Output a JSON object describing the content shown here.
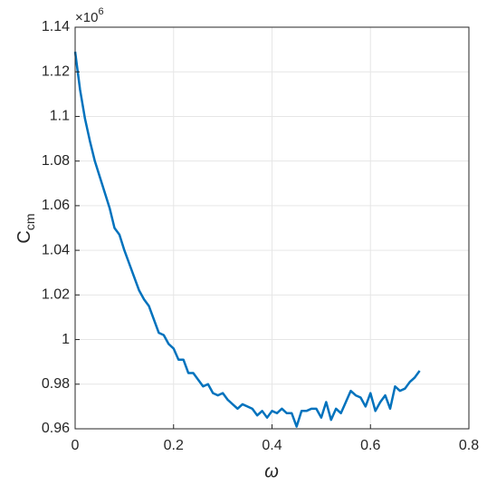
{
  "chart_data": {
    "type": "line",
    "xlabel": "ω",
    "ylabel": {
      "main": "C",
      "sub": "cm"
    },
    "y_multiplier": {
      "base": "×10",
      "exponent": "6"
    },
    "xlim": [
      0,
      0.8
    ],
    "xticks": [
      0,
      0.2,
      0.4,
      0.6,
      0.8
    ],
    "ylim": [
      0.96,
      1.14
    ],
    "yticks": [
      0.96,
      0.98,
      1,
      1.02,
      1.04,
      1.06,
      1.08,
      1.1,
      1.12,
      1.14
    ],
    "grid": true,
    "series": [
      {
        "color": "#0072bd",
        "x": [
          0,
          0.01,
          0.02,
          0.03,
          0.04,
          0.05,
          0.06,
          0.07,
          0.08,
          0.09,
          0.1,
          0.11,
          0.12,
          0.13,
          0.14,
          0.15,
          0.16,
          0.17,
          0.18,
          0.19,
          0.2,
          0.21,
          0.22,
          0.23,
          0.24,
          0.25,
          0.26,
          0.27,
          0.28,
          0.29,
          0.3,
          0.31,
          0.32,
          0.33,
          0.34,
          0.35,
          0.36,
          0.37,
          0.38,
          0.39,
          0.4,
          0.41,
          0.42,
          0.43,
          0.44,
          0.45,
          0.46,
          0.47,
          0.48,
          0.49,
          0.5,
          0.51,
          0.52,
          0.53,
          0.54,
          0.55,
          0.56,
          0.57,
          0.58,
          0.59,
          0.6,
          0.61,
          0.62,
          0.63,
          0.64,
          0.65,
          0.66,
          0.67,
          0.68,
          0.69,
          0.7
        ],
        "values": [
          1.129,
          1.112,
          1.099,
          1.089,
          1.08,
          1.073,
          1.066,
          1.059,
          1.05,
          1.047,
          1.04,
          1.034,
          1.028,
          1.022,
          1.018,
          1.015,
          1.009,
          1.003,
          1.002,
          0.998,
          0.996,
          0.991,
          0.991,
          0.985,
          0.985,
          0.982,
          0.979,
          0.98,
          0.976,
          0.975,
          0.976,
          0.973,
          0.971,
          0.969,
          0.971,
          0.97,
          0.969,
          0.966,
          0.968,
          0.965,
          0.968,
          0.967,
          0.969,
          0.967,
          0.967,
          0.961,
          0.968,
          0.968,
          0.969,
          0.969,
          0.965,
          0.972,
          0.964,
          0.969,
          0.967,
          0.972,
          0.977,
          0.975,
          0.974,
          0.97,
          0.976,
          0.968,
          0.972,
          0.975,
          0.969,
          0.979,
          0.977,
          0.978,
          0.981,
          0.983,
          0.986
        ]
      }
    ]
  }
}
